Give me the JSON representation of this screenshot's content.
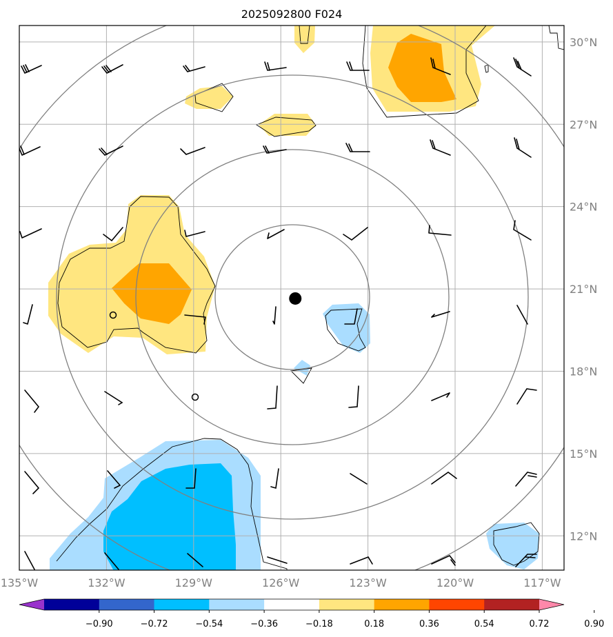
{
  "title": "2025092800 F024",
  "map": {
    "lon_range": [
      -135,
      -116.25
    ],
    "lat_range": [
      10.75,
      30.6
    ],
    "lat_ticks": [
      {
        "value": 30,
        "label": "30°N"
      },
      {
        "value": 27,
        "label": "27°N"
      },
      {
        "value": 24,
        "label": "24°N"
      },
      {
        "value": 21,
        "label": "21°N"
      },
      {
        "value": 18,
        "label": "18°N"
      },
      {
        "value": 15,
        "label": "15°N"
      },
      {
        "value": 12,
        "label": "12°N"
      }
    ],
    "lon_ticks": [
      {
        "value": -135,
        "label": "135°W"
      },
      {
        "value": -132,
        "label": "132°W"
      },
      {
        "value": -129,
        "label": "129°W"
      },
      {
        "value": -126,
        "label": "126°W"
      },
      {
        "value": -123,
        "label": "123°W"
      },
      {
        "value": -120,
        "label": "120°W"
      },
      {
        "value": -117,
        "label": "117°W"
      }
    ],
    "storm_center": {
      "lon": -125.5,
      "lat": 20.65
    },
    "colors": {
      "grid": "#b0b0b0",
      "rings": "#808080",
      "contour": "#000000",
      "barb": "#000000"
    }
  },
  "colorbar": {
    "colors": [
      "#9933cc",
      "#000099",
      "#3366cc",
      "#00bfff",
      "#aaddff",
      "#ffffff",
      "#ffe680",
      "#ffa500",
      "#ff4500",
      "#b22222",
      "#ff88aa"
    ],
    "labels": [
      "−0.90",
      "−0.72",
      "−0.54",
      "−0.36",
      "−0.18",
      "0.18",
      "0.36",
      "0.54",
      "0.72",
      "0.90"
    ]
  }
}
